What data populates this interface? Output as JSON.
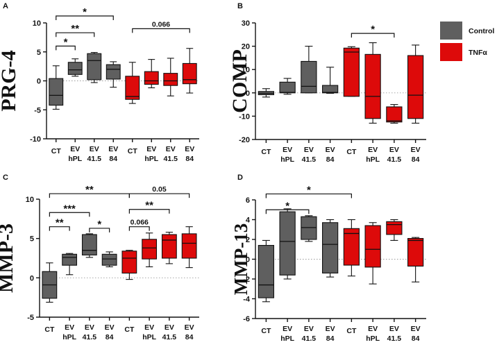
{
  "legend": {
    "items": [
      {
        "label": "Control",
        "color": "#5f5f5f"
      },
      {
        "label": "TNFα",
        "color": "#dd0a0a"
      }
    ]
  },
  "chart_data": [
    {
      "panel": "A",
      "type": "box",
      "ylabel": "PRG-4",
      "ylim": [
        -10,
        10
      ],
      "yticks": [
        -10,
        -5,
        0,
        5,
        10
      ],
      "categories": [
        "CT",
        "EV\nhPL",
        "EV\n41.5",
        "EV\n84",
        "CT",
        "EV\nhPL",
        "EV\n41.5",
        "EV\n84"
      ],
      "groups": [
        "Control",
        "Control",
        "Control",
        "Control",
        "TNFα",
        "TNFα",
        "TNFα",
        "TNFα"
      ],
      "boxes": [
        {
          "min": -4.9,
          "q1": -4.2,
          "median": -2.5,
          "q3": 0.4,
          "max": 2.6
        },
        {
          "min": 0.8,
          "q1": 1.1,
          "median": 1.9,
          "q3": 3.2,
          "max": 3.8
        },
        {
          "min": -0.3,
          "q1": 0.2,
          "median": 3.5,
          "q3": 4.7,
          "max": 4.9
        },
        {
          "min": -1.1,
          "q1": 0.3,
          "median": 2.0,
          "q3": 2.8,
          "max": 3.3
        },
        {
          "min": -3.9,
          "q1": -3.2,
          "median": -2.7,
          "q3": 0.8,
          "max": 3.2
        },
        {
          "min": -1.2,
          "q1": -0.6,
          "median": 0.0,
          "q3": 1.6,
          "max": 3.7
        },
        {
          "min": -2.6,
          "q1": -0.8,
          "median": 0.0,
          "q3": 1.3,
          "max": 3.9
        },
        {
          "min": -2.1,
          "q1": -0.5,
          "median": 0.2,
          "q3": 3.0,
          "max": 5.6
        }
      ],
      "brackets": [
        {
          "from": 0,
          "to": 1,
          "y": 6.0,
          "label": "*"
        },
        {
          "from": 0,
          "to": 2,
          "y": 8.3,
          "label": "**"
        },
        {
          "from": 0,
          "to": 3,
          "y": 11.2,
          "label": "*"
        },
        {
          "from": 4,
          "to": 7,
          "y": 9.0,
          "label": "0.066"
        }
      ]
    },
    {
      "panel": "B",
      "type": "box",
      "ylabel": "COMP",
      "ylim": [
        -20,
        30
      ],
      "yticks": [
        -20,
        -10,
        0,
        10,
        20,
        30
      ],
      "categories": [
        "CT",
        "EV\nhPL",
        "EV\n41.5",
        "EV\n84",
        "CT",
        "EV\nhPL",
        "EV\n41.5",
        "EV\n84"
      ],
      "groups": [
        "Control",
        "Control",
        "Control",
        "Control",
        "TNFα",
        "TNFα",
        "TNFα",
        "TNFα"
      ],
      "boxes": [
        {
          "min": -1.8,
          "q1": -0.8,
          "median": -0.2,
          "q3": 0.6,
          "max": 1.8
        },
        {
          "min": -0.6,
          "q1": 0.0,
          "median": 0.2,
          "q3": 4.6,
          "max": 6.2
        },
        {
          "min": 0.0,
          "q1": 0.0,
          "median": 2.8,
          "q3": 13.5,
          "max": 20.0
        },
        {
          "min": -0.2,
          "q1": 0.0,
          "median": 0.2,
          "q3": 3.2,
          "max": 11.0
        },
        {
          "min": -1.5,
          "q1": -1.5,
          "median": 17.5,
          "q3": 19.2,
          "max": 19.8
        },
        {
          "min": -13.0,
          "q1": -11.0,
          "median": -1.5,
          "q3": 16.5,
          "max": 21.5
        },
        {
          "min": -13.0,
          "q1": -12.5,
          "median": -12.0,
          "q3": -6.0,
          "max": -5.0
        },
        {
          "min": -13.0,
          "q1": -11.0,
          "median": -1.0,
          "q3": 16.0,
          "max": 20.5
        }
      ],
      "brackets": [
        {
          "from": 4,
          "to": 6,
          "y": 25.5,
          "label": "*"
        }
      ]
    },
    {
      "panel": "C",
      "type": "box",
      "ylabel": "MMP-3",
      "ylim": [
        -5,
        10
      ],
      "yticks": [
        -5,
        0,
        5,
        10
      ],
      "categories": [
        "CT",
        "EV\nhPL",
        "EV\n41.5",
        "EV\n84",
        "CT",
        "EV\nhPL",
        "EV\n41.5",
        "EV\n84"
      ],
      "groups": [
        "Control",
        "Control",
        "Control",
        "Control",
        "TNFα",
        "TNFα",
        "TNFα",
        "TNFα"
      ],
      "boxes": [
        {
          "min": -3.1,
          "q1": -2.6,
          "median": -0.9,
          "q3": 0.8,
          "max": 1.9
        },
        {
          "min": 0.4,
          "q1": 1.6,
          "median": 2.6,
          "q3": 3.0,
          "max": 3.1
        },
        {
          "min": 2.6,
          "q1": 2.9,
          "median": 3.5,
          "q3": 5.5,
          "max": 5.6
        },
        {
          "min": 1.4,
          "q1": 1.6,
          "median": 2.4,
          "q3": 3.0,
          "max": 3.3
        },
        {
          "min": -0.2,
          "q1": 0.6,
          "median": 2.5,
          "q3": 3.4,
          "max": 3.5
        },
        {
          "min": 1.4,
          "q1": 2.4,
          "median": 3.8,
          "q3": 4.9,
          "max": 5.7
        },
        {
          "min": 1.8,
          "q1": 2.5,
          "median": 4.8,
          "q3": 5.5,
          "max": 5.8
        },
        {
          "min": 1.3,
          "q1": 2.5,
          "median": 4.4,
          "q3": 5.6,
          "max": 6.5
        }
      ],
      "brackets": [
        {
          "from": 0,
          "to": 1,
          "y": 6.5,
          "label": "**"
        },
        {
          "from": 0,
          "to": 2,
          "y": 8.3,
          "label": "***"
        },
        {
          "from": 2,
          "to": 3,
          "y": 6.3,
          "label": "*"
        },
        {
          "from": 0,
          "to": 4,
          "y": 10.7,
          "label": "**"
        },
        {
          "from": 4,
          "to": 5,
          "y": 6.5,
          "label": "0.066"
        },
        {
          "from": 4,
          "to": 6,
          "y": 8.7,
          "label": "**"
        },
        {
          "from": 4,
          "to": 7,
          "y": 10.7,
          "label": "0.05"
        }
      ]
    },
    {
      "panel": "D",
      "type": "box",
      "ylabel": "MMP-13",
      "ylim": [
        -6,
        6
      ],
      "yticks": [
        -6,
        -4,
        -2,
        0,
        2,
        4,
        6
      ],
      "categories": [
        "CT",
        "EV\nhPL",
        "EV\n41.5",
        "EV\n84",
        "CT",
        "EV\nhPL",
        "EV\n41.5",
        "EV\n84"
      ],
      "groups": [
        "Control",
        "Control",
        "Control",
        "Control",
        "TNFα",
        "TNFα",
        "TNFα",
        "TNFα"
      ],
      "boxes": [
        {
          "min": -4.3,
          "q1": -3.9,
          "median": -2.6,
          "q3": 1.4,
          "max": 1.9
        },
        {
          "min": -2.0,
          "q1": -1.6,
          "median": 1.8,
          "q3": 4.8,
          "max": 5.1
        },
        {
          "min": 1.8,
          "q1": 2.0,
          "median": 3.2,
          "q3": 4.3,
          "max": 4.4
        },
        {
          "min": -1.8,
          "q1": -1.4,
          "median": 1.5,
          "q3": 3.7,
          "max": 4.0
        },
        {
          "min": -1.7,
          "q1": -0.6,
          "median": 2.6,
          "q3": 3.1,
          "max": 4.0
        },
        {
          "min": -2.5,
          "q1": -0.8,
          "median": 1.0,
          "q3": 3.4,
          "max": 3.7
        },
        {
          "min": 1.9,
          "q1": 2.5,
          "median": 3.5,
          "q3": 3.8,
          "max": 4.0
        },
        {
          "min": -2.3,
          "q1": -0.7,
          "median": 1.9,
          "q3": 2.1,
          "max": 2.2
        }
      ],
      "brackets": [
        {
          "from": 0,
          "to": 2,
          "y": 5.0,
          "label": "*"
        },
        {
          "from": 0,
          "to": 4,
          "y": 6.6,
          "label": "*"
        }
      ]
    }
  ]
}
